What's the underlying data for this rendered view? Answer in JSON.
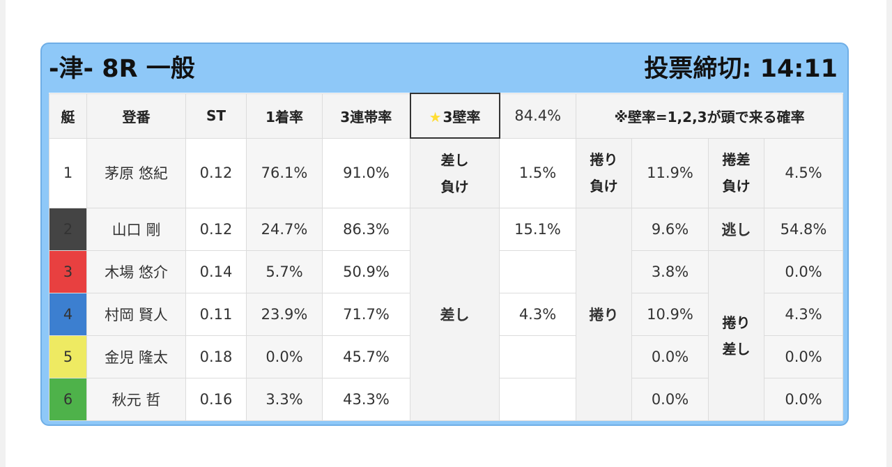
{
  "header": {
    "race": "-津- 8R 一般",
    "deadline": "投票締切: 14:11"
  },
  "columns": {
    "boat": "艇",
    "name": "登番",
    "st": "ST",
    "first": "1着率",
    "top3": "3連帯率",
    "wall_star": "★",
    "wall_label": "3壁率",
    "wall_value": "84.4%",
    "note": "※壁率=1,2,3が頭で来る確率"
  },
  "racers": [
    {
      "boat": "1",
      "name": "茅原 悠紀",
      "st": "0.12",
      "first": "76.1%",
      "top3": "91.0%"
    },
    {
      "boat": "2",
      "name": "山口 剛",
      "st": "0.12",
      "first": "24.7%",
      "top3": "86.3%"
    },
    {
      "boat": "3",
      "name": "木場 悠介",
      "st": "0.14",
      "first": "5.7%",
      "top3": "50.9%"
    },
    {
      "boat": "4",
      "name": "村岡 賢人",
      "st": "0.11",
      "first": "23.9%",
      "top3": "71.7%"
    },
    {
      "boat": "5",
      "name": "金児 隆太",
      "st": "0.18",
      "first": "0.0%",
      "top3": "45.7%"
    },
    {
      "boat": "6",
      "name": "秋元 哲",
      "st": "0.16",
      "first": "3.3%",
      "top3": "43.3%"
    }
  ],
  "outcomes": {
    "sashi_make": {
      "line1": "差し",
      "line2": "負け",
      "value": "1.5%"
    },
    "makuri_make": {
      "line1": "捲り",
      "line2": "負け",
      "value": "11.9%"
    },
    "makurizashi_make": {
      "line1": "捲差",
      "line2": "負け",
      "value": "4.5%"
    },
    "sashi": {
      "label": "差し",
      "values": [
        "15.1%",
        "",
        "4.3%",
        "",
        ""
      ]
    },
    "makuri": {
      "label": "捲り",
      "values": [
        "9.6%",
        "3.8%",
        "10.9%",
        "0.0%",
        "0.0%"
      ]
    },
    "nige": {
      "label": "逃し",
      "value": "54.8%"
    },
    "makurizashi": {
      "line1": "捲り",
      "line2": "差し",
      "values": [
        "0.0%",
        "4.3%",
        "0.0%",
        "0.0%"
      ]
    }
  },
  "colors": {
    "panel": "#8ec8f8",
    "wall_highlight": "#f0a21a",
    "boat2": "#444444",
    "boat3": "#e84040",
    "boat4": "#3c7fd0",
    "boat5": "#eeea62",
    "boat6": "#4eb24a"
  }
}
